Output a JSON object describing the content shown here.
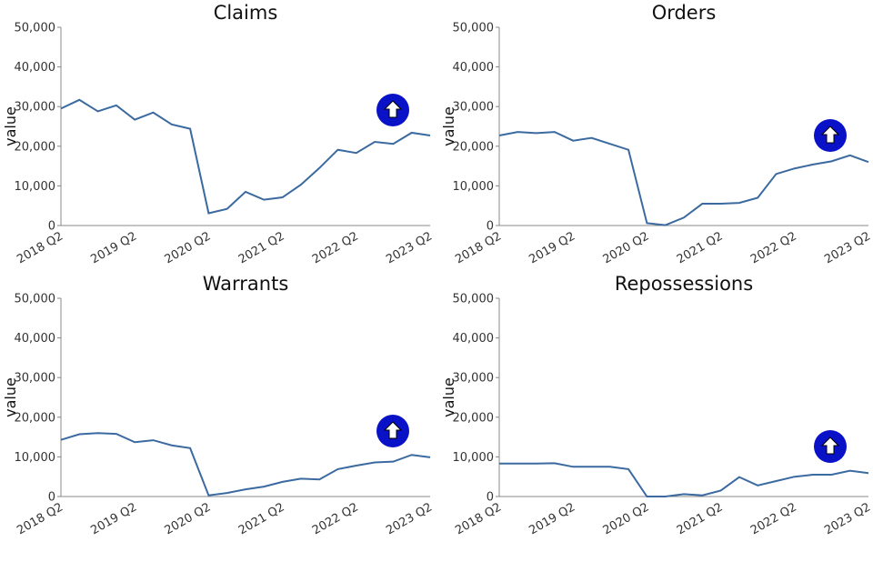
{
  "chart_data": [
    {
      "type": "line",
      "title": "Claims",
      "y_label": "value",
      "color": "#3b6aa0",
      "categories": [
        "2018 Q2",
        null,
        null,
        null,
        "2019 Q2",
        null,
        null,
        null,
        "2020 Q2",
        null,
        null,
        null,
        "2021 Q2",
        null,
        null,
        null,
        "2022 Q2",
        null,
        null,
        null,
        "2023 Q2"
      ],
      "values": [
        29500,
        31700,
        28800,
        30300,
        26700,
        28500,
        25500,
        24400,
        3100,
        4200,
        8500,
        6500,
        7100,
        10300,
        14500,
        19100,
        18300,
        21100,
        20600,
        23400,
        22700
      ],
      "ylim": [
        0,
        50000
      ],
      "yticks": [
        0,
        {
          "value": 10000,
          "label": "10,000"
        },
        {
          "value": 20000,
          "label": "20,000"
        },
        {
          "value": 30000,
          "label": "30,000"
        },
        {
          "value": 40000,
          "label": "40,000"
        },
        {
          "value": 50000,
          "label": "50,000"
        }
      ]
    },
    {
      "type": "line",
      "title": "Orders",
      "y_label": "value",
      "color": "#3b6aa0",
      "categories": [
        "2018 Q2",
        null,
        null,
        null,
        "2019 Q2",
        null,
        null,
        null,
        "2020 Q2",
        null,
        null,
        null,
        "2021 Q2",
        null,
        null,
        null,
        "2022 Q2",
        null,
        null,
        null,
        "2023 Q2"
      ],
      "values": [
        22700,
        23600,
        23300,
        23600,
        21400,
        22100,
        20600,
        19100,
        600,
        100,
        2000,
        5500,
        5500,
        5700,
        7000,
        13000,
        14400,
        15400,
        16200,
        17700,
        16000
      ],
      "ylim": [
        0,
        50000
      ],
      "yticks": [
        0,
        {
          "value": 10000,
          "label": "10,000"
        },
        {
          "value": 20000,
          "label": "20,000"
        },
        {
          "value": 30000,
          "label": "30,000"
        },
        {
          "value": 40000,
          "label": "40,000"
        },
        {
          "value": 50000,
          "label": "50,000"
        }
      ]
    },
    {
      "type": "line",
      "title": "Warrants",
      "y_label": "value",
      "color": "#3b6aa0",
      "categories": [
        "2018 Q2",
        null,
        null,
        null,
        "2019 Q2",
        null,
        null,
        null,
        "2020 Q2",
        null,
        null,
        null,
        "2021 Q2",
        null,
        null,
        null,
        "2022 Q2",
        null,
        null,
        null,
        "2023 Q2"
      ],
      "values": [
        14300,
        15700,
        16000,
        15800,
        13700,
        14200,
        12900,
        12200,
        300,
        900,
        1800,
        2500,
        3700,
        4500,
        4300,
        6900,
        7800,
        8600,
        8800,
        10500,
        9900
      ],
      "ylim": [
        0,
        50000
      ],
      "yticks": [
        0,
        {
          "value": 10000,
          "label": "10,000"
        },
        {
          "value": 20000,
          "label": "20,000"
        },
        {
          "value": 30000,
          "label": "30,000"
        },
        {
          "value": 40000,
          "label": "40,000"
        },
        {
          "value": 50000,
          "label": "50,000"
        }
      ]
    },
    {
      "type": "line",
      "title": "Repossessions",
      "y_label": "value",
      "color": "#3b6aa0",
      "categories": [
        "2018 Q2",
        null,
        null,
        null,
        "2019 Q2",
        null,
        null,
        null,
        "2020 Q2",
        null,
        null,
        null,
        "2021 Q2",
        null,
        null,
        null,
        "2022 Q2",
        null,
        null,
        null,
        "2023 Q2"
      ],
      "values": [
        8300,
        8300,
        8300,
        8400,
        7500,
        7500,
        7500,
        6900,
        0,
        0,
        600,
        300,
        1500,
        4900,
        2800,
        3900,
        5000,
        5500,
        5500,
        6500,
        5900
      ],
      "ylim": [
        0,
        50000
      ],
      "yticks": [
        0,
        {
          "value": 10000,
          "label": "10,000"
        },
        {
          "value": 20000,
          "label": "20,000"
        },
        {
          "value": 30000,
          "label": "30,000"
        },
        {
          "value": 40000,
          "label": "40,000"
        },
        {
          "value": 50000,
          "label": "50,000"
        }
      ]
    }
  ]
}
